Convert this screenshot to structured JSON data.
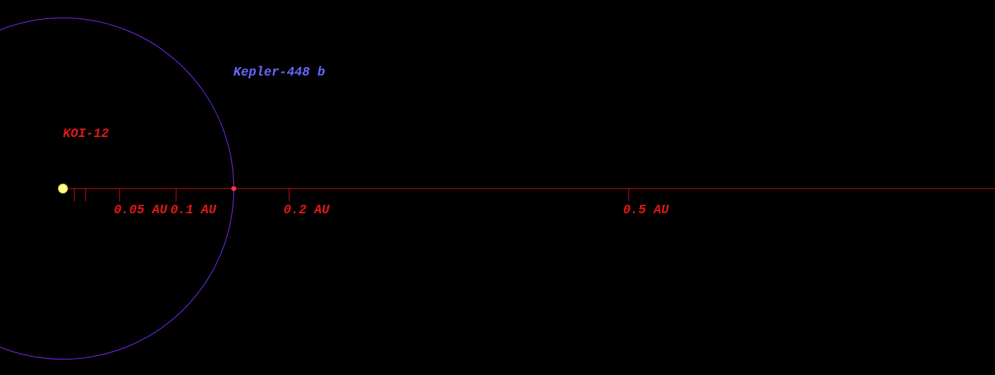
{
  "star": {
    "label": "KOI-12"
  },
  "planet": {
    "label": "Kepler-448 b",
    "semi_major_axis": 0.151
  },
  "scale": {
    "ticks": [
      0.01,
      0.02,
      {
        "value": 0.05,
        "label": "0.05 AU"
      },
      {
        "value": 0.1,
        "label": "0.1 AU"
      },
      {
        "value": 0.2,
        "label": "0.2 AU"
      },
      {
        "value": 0.5,
        "label": "0.5 AU"
      }
    ]
  }
}
